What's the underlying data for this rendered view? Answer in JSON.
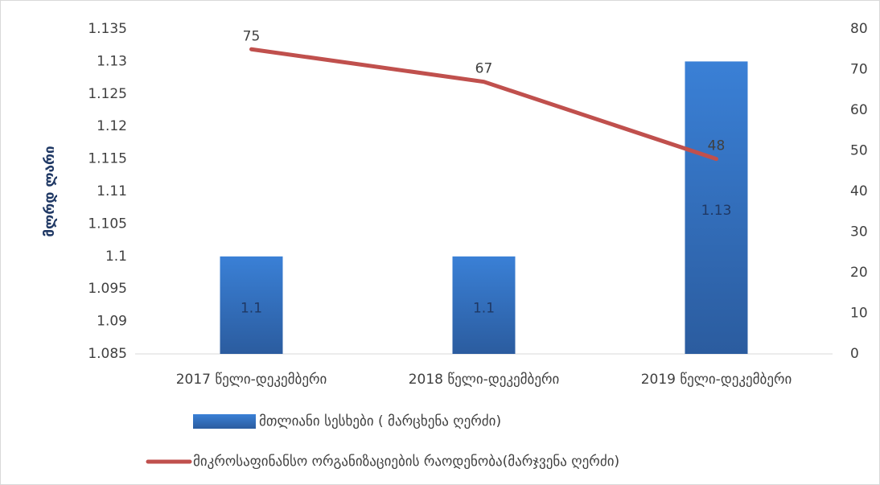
{
  "chart_data": {
    "type": "combo",
    "ylabel": "მლრდ ლარი",
    "categories": [
      "2017 წელი-დეკემბერი",
      "2018 წელი-დეკემბერი",
      "2019 წელი-დეკემბერი"
    ],
    "series": [
      {
        "name": "მთლიანი სესხები ( მარცხენა ღერძი)",
        "type": "bar",
        "color": "#3273c6",
        "values": [
          1.1,
          1.1,
          1.13
        ]
      },
      {
        "name": "მიკროსაფინანსო ორგანიზაციების რაოდენობა(მარჯვენა ღერძი)",
        "type": "line",
        "axis": "y2",
        "color": "#c0504d",
        "values": [
          75,
          67,
          48
        ]
      }
    ],
    "ylim": [
      1.085,
      1.135
    ],
    "yticks": [
      1.085,
      1.09,
      1.095,
      1.1,
      1.105,
      1.11,
      1.115,
      1.12,
      1.125,
      1.13,
      1.135
    ],
    "y2lim": [
      0,
      80
    ],
    "y2ticks": [
      0,
      10,
      20,
      30,
      40,
      50,
      60,
      70,
      80
    ],
    "grid": false
  }
}
